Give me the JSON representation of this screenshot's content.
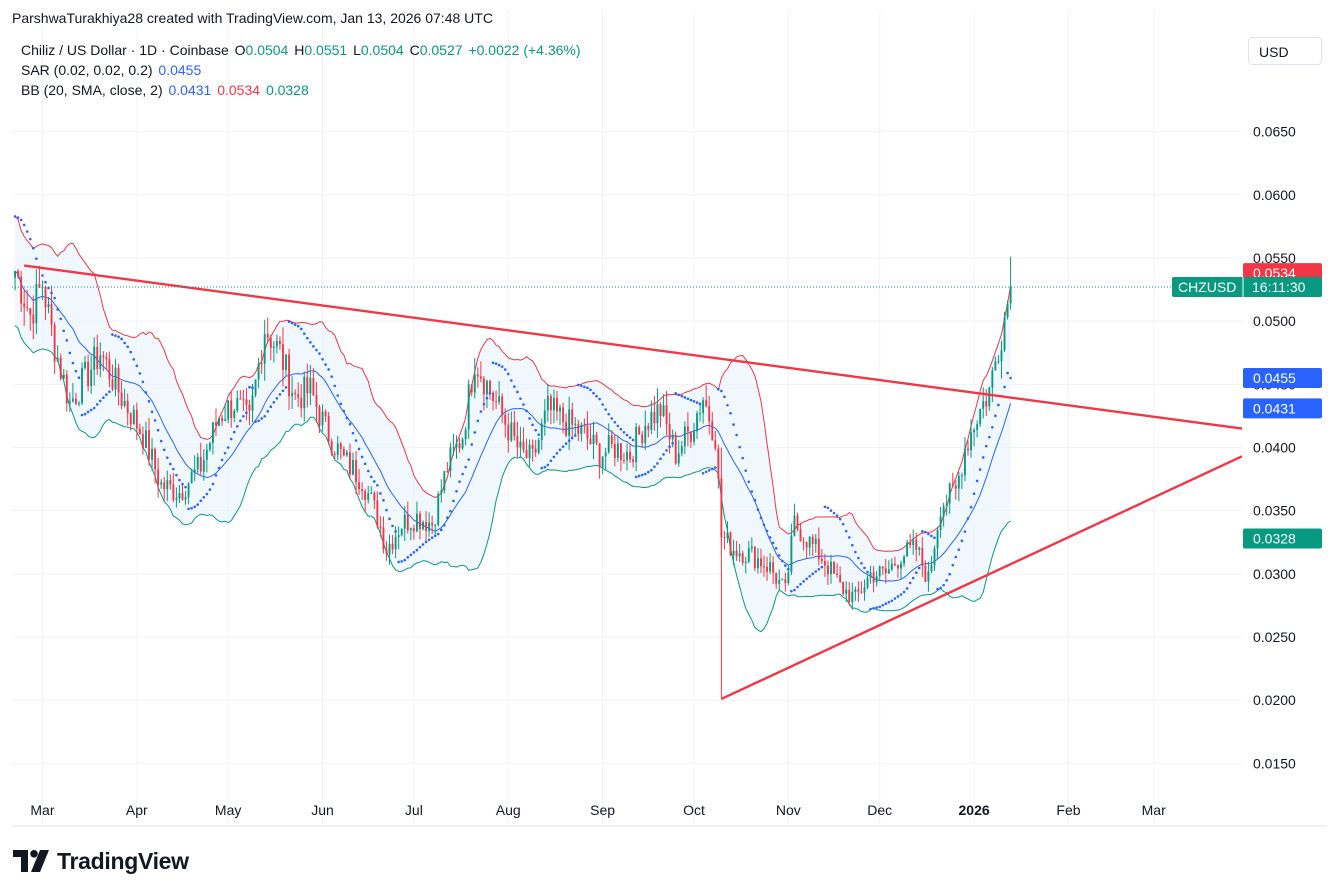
{
  "caption": "ParshwaTurakhiya28 created with TradingView.com, Jan 13, 2026 07:48 UTC",
  "legend": {
    "symbol_line": "Chiliz / US Dollar · 1D · Coinbase",
    "o_label": "O",
    "o_value": "0.0504",
    "h_label": "H",
    "h_value": "0.0551",
    "l_label": "L",
    "l_value": "0.0504",
    "c_label": "C",
    "c_value": "0.0527",
    "change": "+0.0022 (+4.36%)",
    "sar_label": "SAR (0.02, 0.02, 0.2)",
    "sar_value": "0.0455",
    "bb_label": "BB (20, SMA, close, 2)",
    "bb_basis": "0.0431",
    "bb_upper": "0.0534",
    "bb_lower": "0.0328"
  },
  "currency": "USD",
  "brand": "TradingView",
  "colors": {
    "up": "#089981",
    "down": "#f23645",
    "sar": "#2962ff",
    "bb_basis": "#2962ff",
    "bb_upper": "#f23645",
    "bb_lower": "#089981",
    "bb_fill": "#e3f2fd",
    "trendline": "#f23645",
    "grid": "#f0f3fa",
    "axis_text": "#131722",
    "price_line": "#089981"
  },
  "chart_data": {
    "type": "candlestick",
    "symbol": "CHZUSD",
    "interval": "1D",
    "y_axis": {
      "ticks": [
        "0.0150",
        "0.0200",
        "0.0250",
        "0.0300",
        "0.0350",
        "0.0400",
        "0.0450",
        "0.0500",
        "0.0550",
        "0.0600",
        "0.0650"
      ],
      "range": [
        0.0125,
        0.0675
      ]
    },
    "x_axis": {
      "labels": [
        "Mar",
        "Apr",
        "May",
        "Jun",
        "Jul",
        "Aug",
        "Sep",
        "Oct",
        "Nov",
        "Dec",
        "2026",
        "Feb",
        "Mar"
      ],
      "range": [
        "2025-02-19",
        "2026-03-30"
      ]
    },
    "price_labels": [
      {
        "text": "0.0534",
        "value": 0.0534,
        "color": "#f23645"
      },
      {
        "text": "CHZUSD",
        "value": 0.0527,
        "color": "#089981",
        "extra": "16:11:30"
      },
      {
        "text": "0.0455",
        "value": 0.0455,
        "color": "#2962ff"
      },
      {
        "text": "0.0431",
        "value": 0.0431,
        "color": "#2962ff"
      },
      {
        "text": "0.0328",
        "value": 0.0328,
        "color": "#089981"
      }
    ],
    "last_close": 0.0527,
    "close_path": [
      [
        "2025-02-20",
        0.054
      ],
      [
        "2025-02-25",
        0.0505
      ],
      [
        "2025-03-01",
        0.053
      ],
      [
        "2025-03-05",
        0.048
      ],
      [
        "2025-03-10",
        0.0435
      ],
      [
        "2025-03-15",
        0.0455
      ],
      [
        "2025-03-20",
        0.0475
      ],
      [
        "2025-03-27",
        0.044
      ],
      [
        "2025-04-03",
        0.041
      ],
      [
        "2025-04-09",
        0.037
      ],
      [
        "2025-04-15",
        0.0365
      ],
      [
        "2025-04-22",
        0.0385
      ],
      [
        "2025-04-28",
        0.0425
      ],
      [
        "2025-05-03",
        0.0435
      ],
      [
        "2025-05-08",
        0.042
      ],
      [
        "2025-05-13",
        0.0495
      ],
      [
        "2025-05-18",
        0.0475
      ],
      [
        "2025-05-23",
        0.044
      ],
      [
        "2025-05-28",
        0.0445
      ],
      [
        "2025-06-02",
        0.0415
      ],
      [
        "2025-06-08",
        0.039
      ],
      [
        "2025-06-14",
        0.0375
      ],
      [
        "2025-06-19",
        0.0345
      ],
      [
        "2025-06-22",
        0.032
      ],
      [
        "2025-06-27",
        0.034
      ],
      [
        "2025-07-02",
        0.0345
      ],
      [
        "2025-07-07",
        0.034
      ],
      [
        "2025-07-12",
        0.0385
      ],
      [
        "2025-07-17",
        0.041
      ],
      [
        "2025-07-21",
        0.047
      ],
      [
        "2025-07-26",
        0.0445
      ],
      [
        "2025-07-31",
        0.042
      ],
      [
        "2025-08-05",
        0.0395
      ],
      [
        "2025-08-09",
        0.039
      ],
      [
        "2025-08-14",
        0.043
      ],
      [
        "2025-08-20",
        0.042
      ],
      [
        "2025-08-26",
        0.041
      ],
      [
        "2025-08-31",
        0.0395
      ],
      [
        "2025-09-05",
        0.04
      ],
      [
        "2025-09-10",
        0.0395
      ],
      [
        "2025-09-15",
        0.042
      ],
      [
        "2025-09-20",
        0.043
      ],
      [
        "2025-09-25",
        0.0395
      ],
      [
        "2025-09-30",
        0.0415
      ],
      [
        "2025-10-04",
        0.044
      ],
      [
        "2025-10-08",
        0.041
      ],
      [
        "2025-10-10",
        0.033
      ],
      [
        "2025-10-14",
        0.032
      ],
      [
        "2025-10-20",
        0.0315
      ],
      [
        "2025-10-26",
        0.0305
      ],
      [
        "2025-10-31",
        0.0285
      ],
      [
        "2025-11-03",
        0.034
      ],
      [
        "2025-11-08",
        0.0325
      ],
      [
        "2025-11-13",
        0.031
      ],
      [
        "2025-11-18",
        0.029
      ],
      [
        "2025-11-23",
        0.028
      ],
      [
        "2025-11-28",
        0.03
      ],
      [
        "2025-12-03",
        0.03
      ],
      [
        "2025-12-08",
        0.0315
      ],
      [
        "2025-12-13",
        0.032
      ],
      [
        "2025-12-17",
        0.0295
      ],
      [
        "2025-12-21",
        0.0355
      ],
      [
        "2025-12-26",
        0.0365
      ],
      [
        "2025-12-29",
        0.04
      ],
      [
        "2026-01-02",
        0.0425
      ],
      [
        "2026-01-06",
        0.0445
      ],
      [
        "2026-01-09",
        0.048
      ],
      [
        "2026-01-13",
        0.0527
      ]
    ],
    "trendlines": [
      {
        "name": "descending-trendline",
        "from": [
          "2025-02-23",
          0.0544
        ],
        "to": [
          "2026-03-30",
          0.0415
        ]
      },
      {
        "name": "ascending-trendline",
        "from": [
          "2025-10-10",
          0.0201
        ],
        "to": [
          "2026-03-30",
          0.0393
        ]
      },
      {
        "name": "october-drop-line",
        "from": [
          "2025-10-10",
          0.0201
        ],
        "to": [
          "2025-10-10",
          0.04
        ]
      }
    ]
  }
}
